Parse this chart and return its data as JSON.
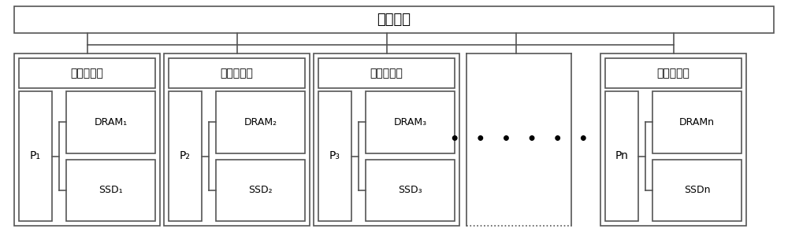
{
  "title": "互联网络",
  "nodes": [
    {
      "label_p": "P₁",
      "label_dram": "DRAM₁",
      "label_ssd": "SSD₁",
      "label_net": "网络控制器"
    },
    {
      "label_p": "P₂",
      "label_dram": "DRAM₂",
      "label_ssd": "SSD₂",
      "label_net": "网络控制器"
    },
    {
      "label_p": "P₃",
      "label_dram": "DRAM₃",
      "label_ssd": "SSD₃",
      "label_net": "网络控制器"
    },
    {
      "label_p": "Pn",
      "label_dram": "DRAMn",
      "label_ssd": "SSDn",
      "label_net": "网络控制器"
    }
  ],
  "dots_text": "•   •   •   •   •   •",
  "line_color": "#555555",
  "box_edge_color": "#555555",
  "bg_color": "#ffffff",
  "font_color": "#000000",
  "font_size_title": 13,
  "font_size_net": 10,
  "font_size_p": 10,
  "font_size_sub": 9
}
